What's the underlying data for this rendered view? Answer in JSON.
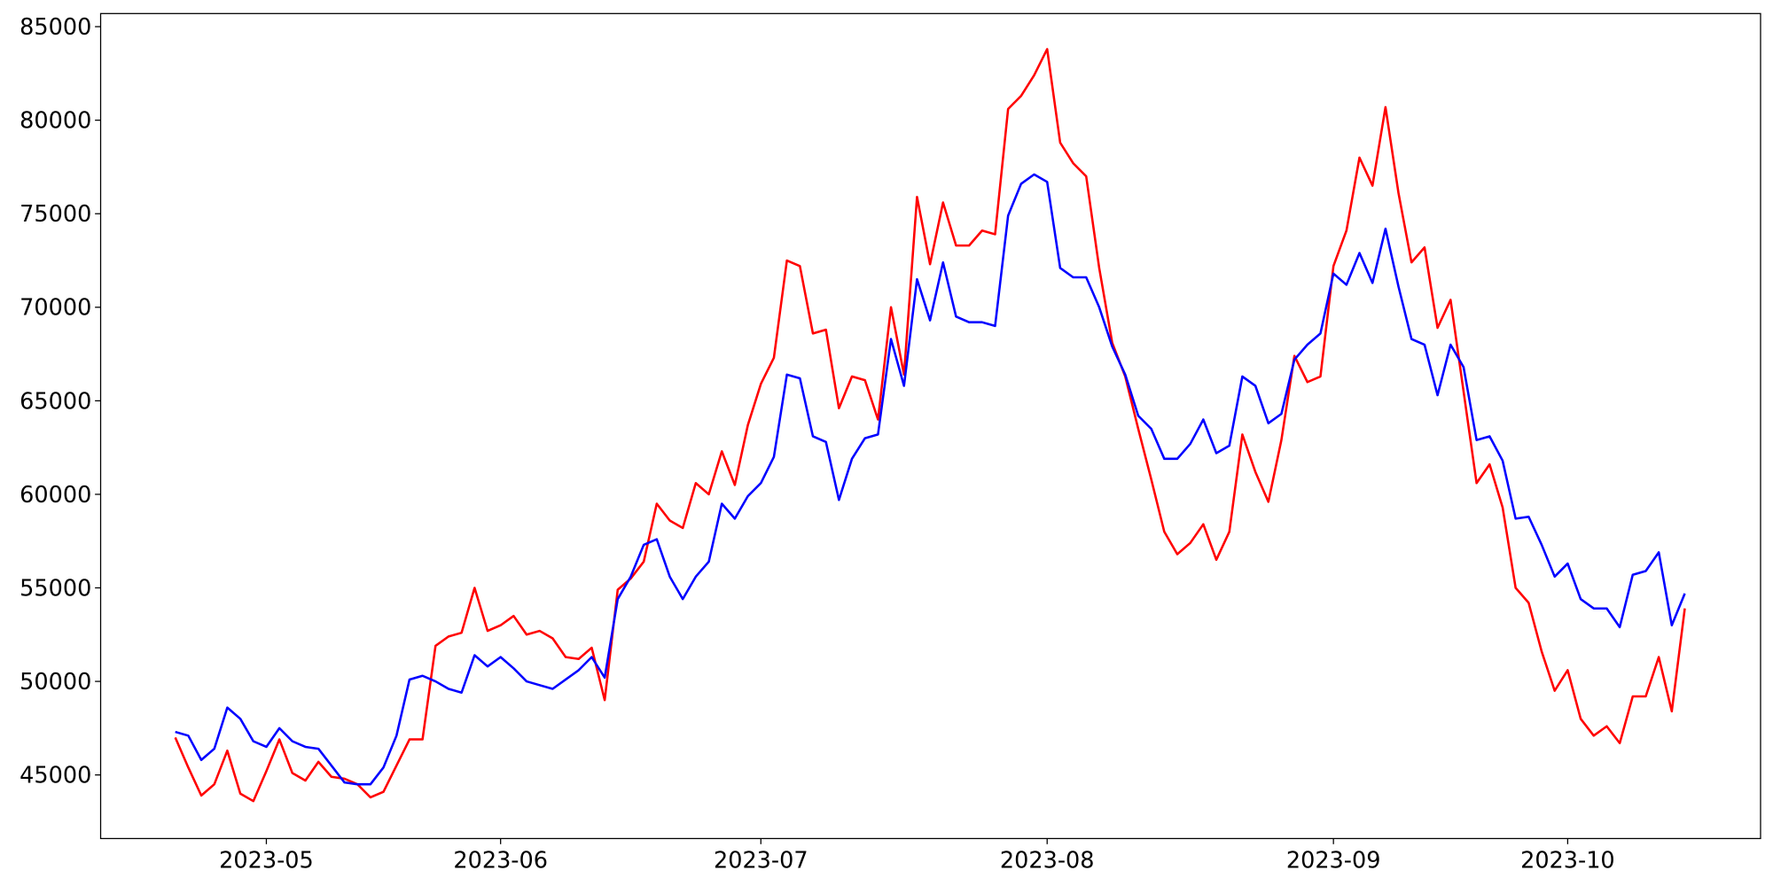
{
  "chart_data": {
    "type": "line",
    "categories": [
      null,
      null,
      null,
      null,
      null,
      null,
      null,
      "2023-05",
      null,
      null,
      null,
      null,
      null,
      null,
      null,
      null,
      null,
      null,
      null,
      null,
      null,
      null,
      null,
      null,
      null,
      "2023-06",
      null,
      null,
      null,
      null,
      null,
      null,
      null,
      null,
      null,
      null,
      null,
      null,
      null,
      null,
      null,
      null,
      null,
      null,
      null,
      "2023-07",
      null,
      null,
      null,
      null,
      null,
      null,
      null,
      null,
      null,
      null,
      null,
      null,
      null,
      null,
      null,
      null,
      null,
      null,
      null,
      null,
      null,
      "2023-08",
      null,
      null,
      null,
      null,
      null,
      null,
      null,
      null,
      null,
      null,
      null,
      null,
      null,
      null,
      null,
      null,
      null,
      null,
      null,
      null,
      null,
      "2023-09",
      null,
      null,
      null,
      null,
      null,
      null,
      null,
      null,
      null,
      null,
      null,
      null,
      null,
      null,
      null,
      null,
      null,
      "2023-10",
      null,
      null,
      null,
      null,
      null,
      null,
      null,
      null,
      null
    ],
    "series": [
      {
        "color": "#ff0000",
        "values": [
          47000,
          45400,
          43900,
          44500,
          46300,
          44000,
          43600,
          45200,
          46900,
          45100,
          44700,
          45700,
          44900,
          44800,
          44500,
          43800,
          44100,
          45500,
          46900,
          46900,
          51900,
          52400,
          52600,
          55000,
          52700,
          53000,
          53500,
          52500,
          52700,
          52300,
          51300,
          51200,
          51800,
          49000,
          54900,
          55500,
          56400,
          59500,
          58600,
          58200,
          60600,
          60000,
          62300,
          60500,
          63700,
          65900,
          67300,
          72500,
          72200,
          68600,
          68800,
          64600,
          66300,
          66100,
          64000,
          70000,
          66400,
          75900,
          72300,
          75600,
          73300,
          73300,
          74100,
          73900,
          80600,
          81300,
          82400,
          83800,
          78800,
          77700,
          77000,
          72100,
          68100,
          66300,
          63500,
          60800,
          58000,
          56800,
          57400,
          58400,
          56500,
          58000,
          63200,
          61200,
          59600,
          62900,
          67400,
          66000,
          66300,
          72200,
          74100,
          78000,
          76500,
          80700,
          76100,
          72400,
          73200,
          68900,
          70400,
          65500,
          60600,
          61600,
          59300,
          55000,
          54200,
          51600,
          49500,
          50600,
          48000,
          47100,
          47600,
          46700,
          49200,
          49200,
          51300,
          48400,
          53900
        ]
      },
      {
        "color": "#0000ff",
        "values": [
          47300,
          47100,
          45800,
          46400,
          48600,
          48000,
          46800,
          46500,
          47500,
          46800,
          46500,
          46400,
          45500,
          44600,
          44500,
          44500,
          45400,
          47100,
          50100,
          50300,
          50000,
          49600,
          49400,
          51400,
          50800,
          51300,
          50700,
          50000,
          49800,
          49600,
          50100,
          50600,
          51300,
          50200,
          54400,
          55600,
          57300,
          57600,
          55600,
          54400,
          55600,
          56400,
          59500,
          58700,
          59900,
          60600,
          62000,
          66400,
          66200,
          63100,
          62800,
          59700,
          61900,
          63000,
          63200,
          68300,
          65800,
          71500,
          69300,
          72400,
          69500,
          69200,
          69200,
          69000,
          74900,
          76600,
          77100,
          76700,
          72100,
          71600,
          71600,
          70000,
          67900,
          66400,
          64200,
          63500,
          61900,
          61900,
          62700,
          64000,
          62200,
          62600,
          66300,
          65800,
          63800,
          64300,
          67200,
          68000,
          68600,
          71800,
          71200,
          72900,
          71300,
          74200,
          71100,
          68300,
          68000,
          65300,
          68000,
          66800,
          62900,
          63100,
          61800,
          58700,
          58800,
          57300,
          55600,
          56300,
          54400,
          53900,
          53900,
          52900,
          55700,
          55900,
          56900,
          53000,
          54700
        ]
      }
    ],
    "ylim": [
      41600,
      85700
    ],
    "yticks": [
      45000,
      50000,
      55000,
      60000,
      65000,
      70000,
      75000,
      80000,
      85000
    ]
  }
}
